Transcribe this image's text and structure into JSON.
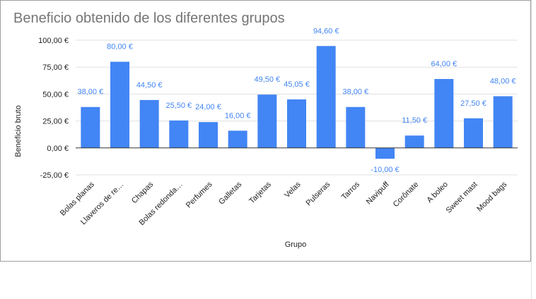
{
  "chart_data": {
    "type": "bar",
    "title": "Beneficio obtenido de los diferentes grupos",
    "xlabel": "Grupo",
    "ylabel": "Beneficio bruto",
    "ylim": [
      -25,
      100
    ],
    "yticks": [
      -25,
      0,
      25,
      50,
      75,
      100
    ],
    "ytick_labels": [
      "-25,00 €",
      "0,00 €",
      "25,00 €",
      "50,00 €",
      "75,00 €",
      "100,00 €"
    ],
    "categories": [
      "Bolas planas",
      "Llaveros de re…",
      "Chapas",
      "Bolas redonda…",
      "Perfumes",
      "Galletas",
      "Tarjetas",
      "Velas",
      "Pulseras",
      "Tarros",
      "Navipuff",
      "Corônate",
      "A boleo",
      "Sweet mast",
      "Mood bags"
    ],
    "values": [
      38,
      80,
      44.5,
      25.5,
      24,
      16,
      49.5,
      45.05,
      94.6,
      38,
      -10,
      11.5,
      64,
      27.5,
      48
    ],
    "value_labels": [
      "38,00 €",
      "80,00 €",
      "44,50 €",
      "25,50 €",
      "24,00 €",
      "16,00 €",
      "49,50 €",
      "45,05 €",
      "94,60 €",
      "38,00 €",
      "-10,00 €",
      "11,50 €",
      "64,00 €",
      "27,50 €",
      "48,00 €"
    ],
    "grid": true,
    "colors": {
      "bar": "#4285f4",
      "label": "#4285f4",
      "grid": "#e0e0e0",
      "zero_line": "#333333",
      "text": "#222222"
    }
  }
}
